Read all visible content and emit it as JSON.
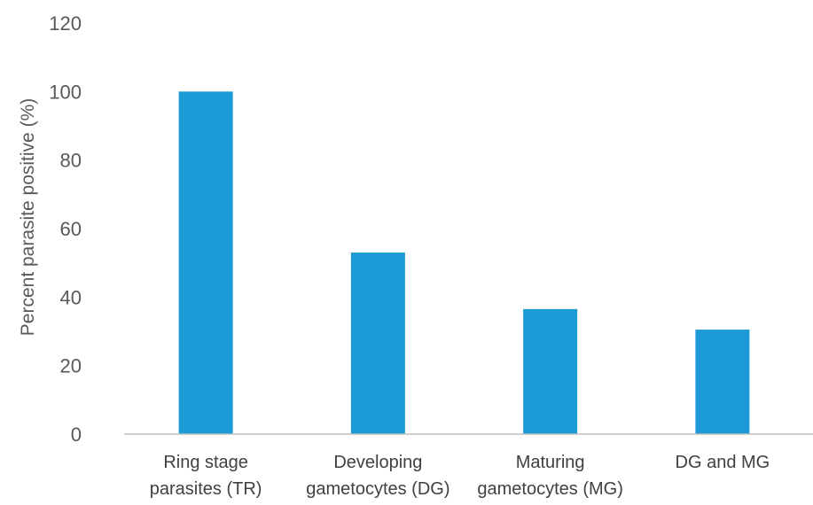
{
  "chart_data": {
    "type": "bar",
    "title": "",
    "xlabel": "",
    "ylabel": "Percent parasite positive (%)",
    "ylim": [
      0,
      120
    ],
    "yticks": [
      0,
      20,
      40,
      60,
      80,
      100,
      120
    ],
    "grid": false,
    "categories": [
      [
        "Ring stage",
        "parasites (TR)"
      ],
      [
        "Developing",
        "gametocytes (DG)"
      ],
      [
        "Maturing",
        "gametocytes (MG)"
      ],
      [
        "DG and MG"
      ]
    ],
    "values": [
      100,
      53,
      36.5,
      30.5
    ],
    "bar_color": "#1b9ad6",
    "axis_color": "#bfbfbf"
  }
}
